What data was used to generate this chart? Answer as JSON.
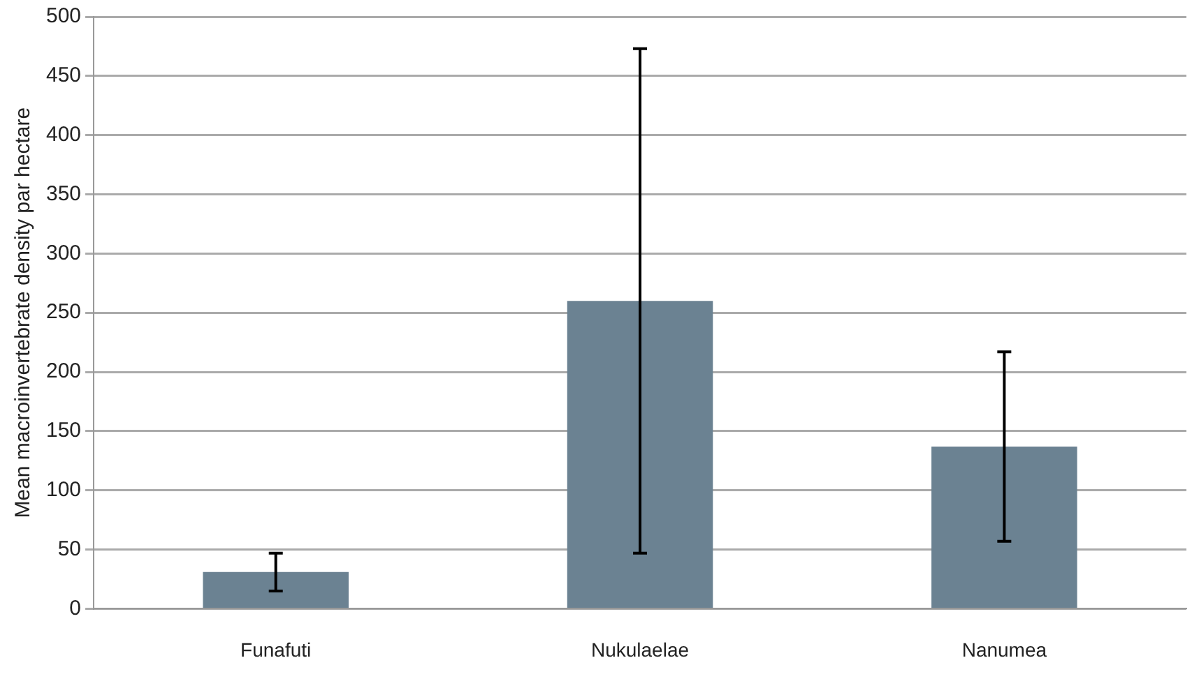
{
  "chart_data": {
    "type": "bar",
    "ylabel": "Mean macroinvertebrate density par hectare",
    "categories": [
      "Funafuti",
      "Nukulaelae",
      "Nanumea"
    ],
    "values": [
      31,
      260,
      137
    ],
    "errors": [
      16,
      213,
      80
    ],
    "color": "#6b8292",
    "ylim": [
      0,
      500
    ],
    "yticks": [
      0,
      50,
      100,
      150,
      200,
      250,
      300,
      350,
      400,
      450,
      500
    ],
    "grid": "y",
    "legend": false
  }
}
